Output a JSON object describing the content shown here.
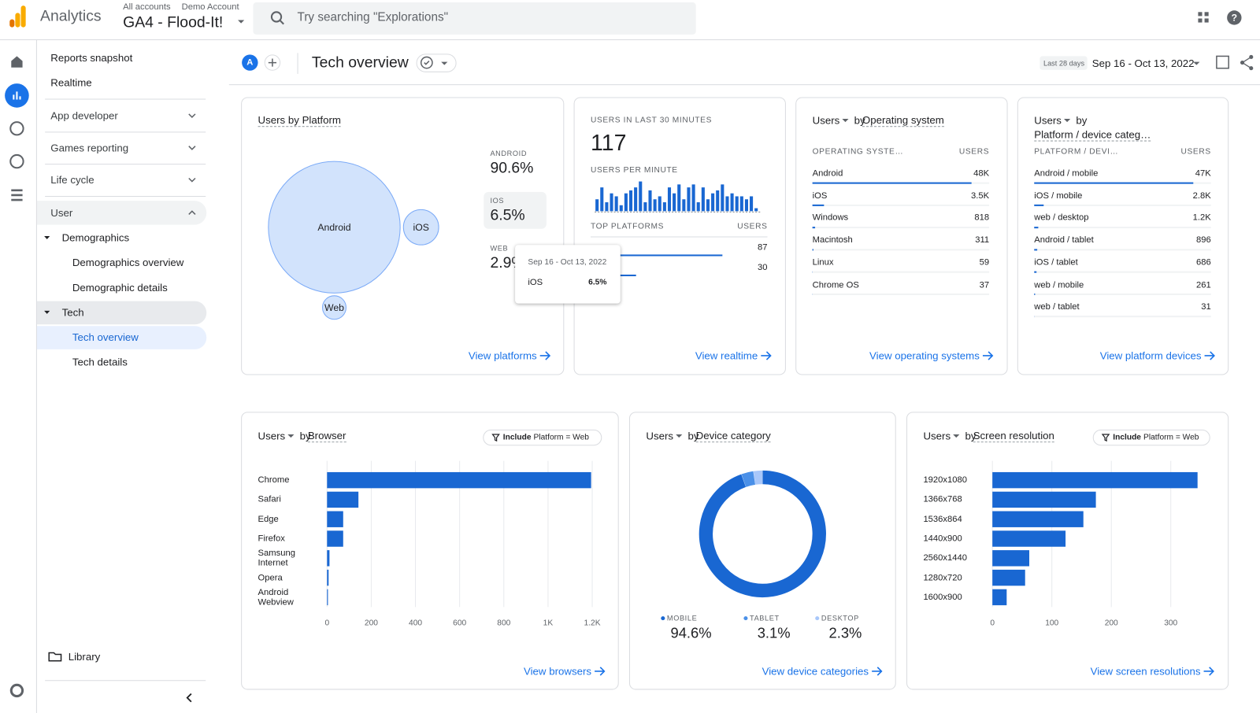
{
  "header": {
    "app_name": "Analytics",
    "breadcrumb": [
      "All accounts",
      "Demo Account"
    ],
    "property": "GA4 - Flood-It!",
    "search_placeholder": "Try searching \"Explorations\""
  },
  "nav": {
    "items": [
      "Reports snapshot",
      "Realtime",
      "App developer",
      "Games reporting",
      "Life cycle",
      "User",
      "Demographics",
      "Demographics overview",
      "Demographic details",
      "Tech",
      "Tech overview",
      "Tech details"
    ],
    "library": "Library"
  },
  "toolbar": {
    "avatar": "A",
    "title": "Tech overview",
    "date_label": "Last 28 days",
    "date_range": "Sep 16 - Oct 13, 2022"
  },
  "platform_card": {
    "title": "Users by Platform",
    "bubbles": [
      {
        "name": "Android",
        "value": 90.6
      },
      {
        "name": "iOS",
        "value": 6.5
      },
      {
        "name": "Web",
        "value": 2.9
      }
    ],
    "stats": [
      {
        "name": "ANDROID",
        "value_label": "90.6%"
      },
      {
        "name": "IOS",
        "value_label": "6.5%"
      },
      {
        "name": "WEB",
        "value_label": "2.9%"
      }
    ],
    "tooltip": {
      "date": "Sep 16 - Oct 13, 2022",
      "name": "iOS",
      "value_label": "6.5%"
    },
    "link": "View platforms"
  },
  "realtime_card": {
    "title": "USERS IN LAST 30 MINUTES",
    "users": 117,
    "per_minute_title": "USERS PER MINUTE",
    "per_minute": [
      4,
      8,
      3,
      6,
      5,
      2,
      6,
      7,
      8,
      10,
      3,
      7,
      4,
      5,
      3,
      8,
      6,
      9,
      4,
      8,
      9,
      3,
      8,
      4,
      6,
      7,
      9,
      5,
      6,
      5,
      5,
      4,
      5,
      1
    ],
    "table_title": "TOP PLATFORMS",
    "column": "USERS",
    "rows": [
      {
        "value": 87
      },
      {
        "value": 30
      }
    ],
    "link": "View realtime"
  },
  "os_card": {
    "metric": "Users",
    "by": "by",
    "dimension": "Operating system",
    "columns": [
      "OPERATING SYSTE…",
      "USERS"
    ],
    "rows": [
      {
        "name": "Android",
        "value": 48000,
        "value_label": "48K"
      },
      {
        "name": "iOS",
        "value": 3500,
        "value_label": "3.5K"
      },
      {
        "name": "Windows",
        "value": 818,
        "value_label": "818"
      },
      {
        "name": "Macintosh",
        "value": 311,
        "value_label": "311"
      },
      {
        "name": "Linux",
        "value": 59,
        "value_label": "59"
      },
      {
        "name": "Chrome OS",
        "value": 37,
        "value_label": "37"
      }
    ],
    "link": "View operating systems"
  },
  "device_card": {
    "metric": "Users",
    "by": "by",
    "dimension": "Platform / device categ…",
    "columns": [
      "PLATFORM / DEVI…",
      "USERS"
    ],
    "rows": [
      {
        "name": "Android / mobile",
        "value": 47000,
        "value_label": "47K"
      },
      {
        "name": "iOS / mobile",
        "value": 2800,
        "value_label": "2.8K"
      },
      {
        "name": "web / desktop",
        "value": 1200,
        "value_label": "1.2K"
      },
      {
        "name": "Android / tablet",
        "value": 896,
        "value_label": "896"
      },
      {
        "name": "iOS / tablet",
        "value": 686,
        "value_label": "686"
      },
      {
        "name": "web / mobile",
        "value": 261,
        "value_label": "261"
      },
      {
        "name": "web / tablet",
        "value": 31,
        "value_label": "31"
      }
    ],
    "link": "View platform devices"
  },
  "browser_card": {
    "metric": "Users",
    "by": "by",
    "dimension": "Browser",
    "filter": {
      "prefix": "Include",
      "text": "Platform = Web"
    },
    "chart": {
      "type": "bar",
      "categories": [
        "Chrome",
        "Safari",
        "Edge",
        "Firefox",
        "Samsung Internet",
        "Opera",
        "Android Webview"
      ],
      "values": [
        1195,
        142,
        73,
        73,
        11,
        7,
        4
      ],
      "color": "#1967d2",
      "xlim": [
        0,
        1200
      ],
      "xticks": [
        0,
        200,
        400,
        600,
        800,
        {
          "value": 1000,
          "label": "1K"
        },
        {
          "value": 1200,
          "label": "1.2K"
        }
      ]
    },
    "link": "View browsers"
  },
  "category_card": {
    "metric": "Users",
    "by": "by",
    "dimension": "Device category",
    "chart": {
      "type": "donut",
      "categories": [
        "MOBILE",
        "TABLET",
        "DESKTOP"
      ],
      "values": [
        94.6,
        3.1,
        2.3
      ],
      "value_labels": [
        "94.6%",
        "3.1%",
        "2.3%"
      ],
      "colors": [
        "#1967d2",
        "#4a90e8",
        "#a8c7fa"
      ]
    },
    "link": "View device categories"
  },
  "resolution_card": {
    "metric": "Users",
    "by": "by",
    "dimension": "Screen resolution",
    "filter": {
      "prefix": "Include",
      "text": "Platform = Web"
    },
    "chart": {
      "type": "bar",
      "categories": [
        "1920x1080",
        "1366x768",
        "1536x864",
        "1440x900",
        "2560x1440",
        "1280x720",
        "1600x900"
      ],
      "values": [
        345,
        174,
        153,
        123,
        62,
        55,
        24
      ],
      "color": "#1967d2",
      "xlim": [
        0,
        350
      ],
      "xticks": [
        0,
        100,
        200,
        300
      ]
    },
    "link": "View screen resolutions"
  }
}
